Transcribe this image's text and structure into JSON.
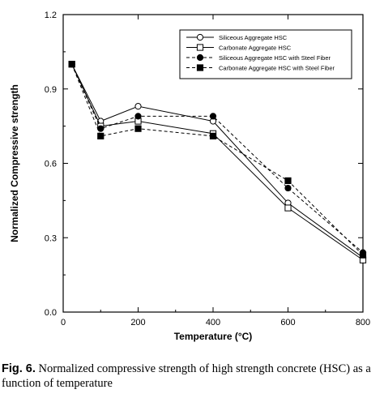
{
  "chart_data": {
    "type": "line",
    "xlabel": "Temperature (°C)",
    "ylabel": "Normalized Compressive strength",
    "xlim": [
      0,
      800
    ],
    "ylim": [
      0.0,
      1.2
    ],
    "xticks": [
      0,
      200,
      400,
      600,
      800
    ],
    "yticks": [
      0.0,
      0.3,
      0.6,
      0.9,
      1.2
    ],
    "xtick_labels": [
      "0",
      "200",
      "400",
      "600",
      "800"
    ],
    "ytick_labels": [
      "0.0",
      "0.3",
      "0.6",
      "0.9",
      "1.2"
    ],
    "grid": false,
    "legend_position": "top-right",
    "series": [
      {
        "name": "Siliceous Aggregate HSC",
        "line": "solid",
        "marker": "open-circle",
        "x": [
          23,
          100,
          200,
          400,
          600,
          800
        ],
        "values": [
          1.0,
          0.77,
          0.83,
          0.77,
          0.44,
          0.22
        ]
      },
      {
        "name": "Carbonate Aggregate HSC",
        "line": "solid",
        "marker": "open-square",
        "x": [
          23,
          100,
          200,
          400,
          600,
          800
        ],
        "values": [
          1.0,
          0.75,
          0.77,
          0.72,
          0.42,
          0.21
        ]
      },
      {
        "name": "Siliceous Aggregate HSC with Steel Fiber",
        "line": "dashed",
        "marker": "filled-circle",
        "x": [
          23,
          100,
          200,
          400,
          600,
          800
        ],
        "values": [
          1.0,
          0.74,
          0.79,
          0.79,
          0.5,
          0.24
        ]
      },
      {
        "name": "Carbonate Aggregate HSC with Steel Fiber",
        "line": "dashed",
        "marker": "filled-square",
        "x": [
          23,
          100,
          200,
          400,
          600,
          800
        ],
        "values": [
          1.0,
          0.71,
          0.74,
          0.71,
          0.53,
          0.23
        ]
      }
    ]
  },
  "caption": {
    "label": "Fig. 6.",
    "text": "Normalized compressive strength of high strength concrete (HSC) as a function of temperature"
  }
}
